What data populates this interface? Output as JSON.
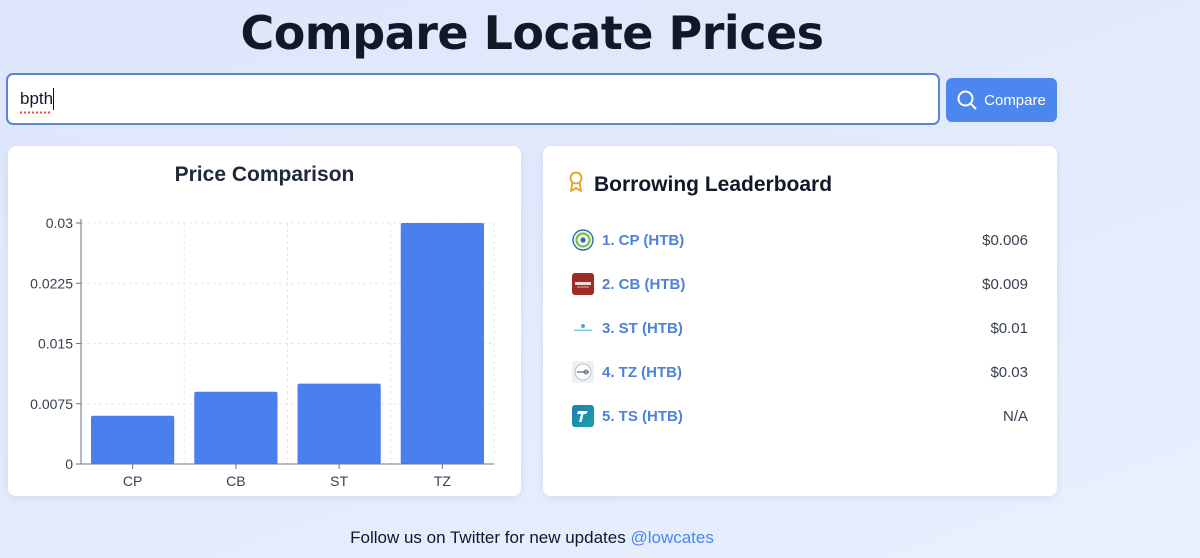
{
  "page": {
    "title": "Compare Locate Prices"
  },
  "search": {
    "value": "bpth",
    "button_label": "Compare",
    "button_icon": "search-icon"
  },
  "chart_card": {
    "title": "Price Comparison"
  },
  "chart_data": {
    "type": "bar",
    "title": "Price Comparison",
    "categories": [
      "CP",
      "CB",
      "ST",
      "TZ"
    ],
    "values": [
      0.006,
      0.009,
      0.01,
      0.03
    ],
    "yticks": [
      "0",
      "0.0075",
      "0.015",
      "0.0225",
      "0.03"
    ],
    "ylim": [
      0,
      0.03
    ],
    "grid": true,
    "bar_color": "#4c7fee",
    "xlabel": "",
    "ylabel": ""
  },
  "leaderboard": {
    "title": "Borrowing Leaderboard",
    "icon": "award-icon",
    "items": [
      {
        "name": "1. CP (HTB)",
        "price": "$0.006",
        "logo": "cp-logo"
      },
      {
        "name": "2. CB (HTB)",
        "price": "$0.009",
        "logo": "cb-logo"
      },
      {
        "name": "3. ST (HTB)",
        "price": "$0.01",
        "logo": "st-logo"
      },
      {
        "name": "4. TZ (HTB)",
        "price": "$0.03",
        "logo": "tz-logo"
      },
      {
        "name": "5. TS (HTB)",
        "price": "N/A",
        "logo": "ts-logo"
      }
    ]
  },
  "footer": {
    "text": "Follow us on Twitter for new updates ",
    "handle": "@lowcates"
  },
  "colors": {
    "accent": "#4c86ef",
    "link": "#4d82d9",
    "background": "#dde6fb"
  }
}
